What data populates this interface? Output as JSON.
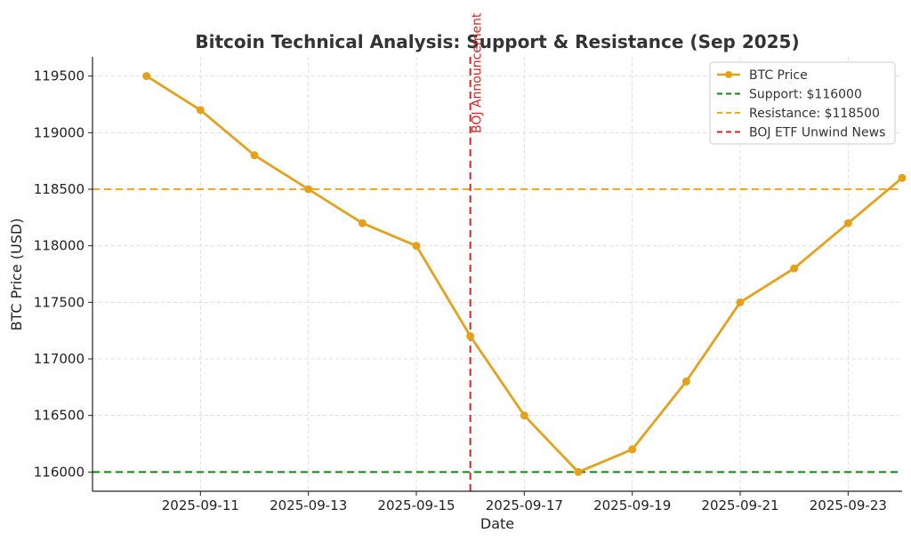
{
  "chart_data": {
    "type": "line",
    "title": "Bitcoin Technical Analysis: Support & Resistance (Sep 2025)",
    "xlabel": "Date",
    "ylabel": "BTC Price (USD)",
    "x": [
      "2025-09-10",
      "2025-09-11",
      "2025-09-12",
      "2025-09-13",
      "2025-09-14",
      "2025-09-15",
      "2025-09-16",
      "2025-09-17",
      "2025-09-18",
      "2025-09-19",
      "2025-09-20",
      "2025-09-21",
      "2025-09-22",
      "2025-09-23",
      "2025-09-24"
    ],
    "xticks": [
      "2025-09-11",
      "2025-09-13",
      "2025-09-15",
      "2025-09-17",
      "2025-09-19",
      "2025-09-21",
      "2025-09-23"
    ],
    "xlim": [
      "2025-09-09",
      "2025-09-24"
    ],
    "ylim": [
      115830,
      119670
    ],
    "yticks": [
      116000,
      116500,
      117000,
      117500,
      118000,
      118500,
      119000,
      119500
    ],
    "grid": true,
    "legend_position": "top-right",
    "series": [
      {
        "name": "BTC Price",
        "color": "#E6A11A",
        "values": [
          119500,
          119200,
          118800,
          118500,
          118200,
          118000,
          117200,
          116500,
          116000,
          116200,
          116800,
          117500,
          117800,
          118200,
          118600
        ]
      }
    ],
    "hlines": [
      {
        "name": "Support: $116000",
        "value": 116000,
        "color": "#0A8A0A"
      },
      {
        "name": "Resistance: $118500",
        "value": 118500,
        "color": "#F5A623"
      }
    ],
    "vlines": [
      {
        "name": "BOJ ETF Unwind News",
        "x": "2025-09-16",
        "color": "#E02020",
        "annotation": "BOJ Announcement"
      }
    ]
  }
}
